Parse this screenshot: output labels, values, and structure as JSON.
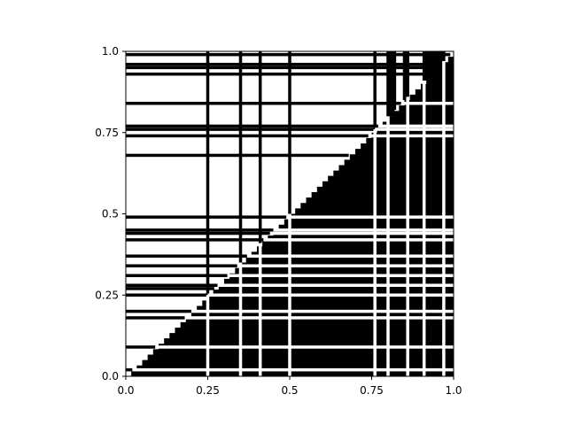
{
  "chart_data": {
    "type": "heatmap",
    "title": "",
    "xlabel": "",
    "ylabel": "",
    "xlim": [
      0,
      1
    ],
    "ylim": [
      0,
      1
    ],
    "x_ticks": [
      0.0,
      0.25,
      0.5,
      0.75,
      1.0
    ],
    "y_ticks": [
      0.0,
      0.25,
      0.5,
      0.75,
      1.0
    ],
    "x_tick_labels": [
      "0.0",
      "0.25",
      "0.5",
      "0.75",
      "1.0"
    ],
    "y_tick_labels": [
      "0.0",
      "0.25",
      "0.5",
      "0.75",
      "1.0"
    ],
    "colors": {
      "filled": "#000000",
      "empty": "#ffffff"
    },
    "grid": false,
    "description_values": {
      "region_below_diagonal_filled": true,
      "white_vertical_gaps_x": [
        0.25,
        0.35,
        0.41,
        0.5,
        0.76,
        0.8,
        0.86,
        0.91,
        0.97
      ],
      "white_horizontal_gaps_y": [
        0.02,
        0.09,
        0.18,
        0.2,
        0.25,
        0.28,
        0.31,
        0.34,
        0.37,
        0.42,
        0.44,
        0.45,
        0.49,
        0.74,
        0.76,
        0.77,
        0.84
      ],
      "black_vertical_lines_x": [
        0.25,
        0.35,
        0.41,
        0.5,
        0.76,
        0.8,
        0.82,
        0.85,
        0.86,
        0.91,
        0.97
      ],
      "black_horizontal_lines_y": [
        0.02,
        0.09,
        0.18,
        0.2,
        0.25,
        0.27,
        0.28,
        0.31,
        0.34,
        0.37,
        0.42,
        0.44,
        0.45,
        0.49,
        0.68,
        0.74,
        0.76,
        0.77,
        0.84,
        0.93,
        0.95,
        0.96,
        0.99
      ]
    }
  }
}
